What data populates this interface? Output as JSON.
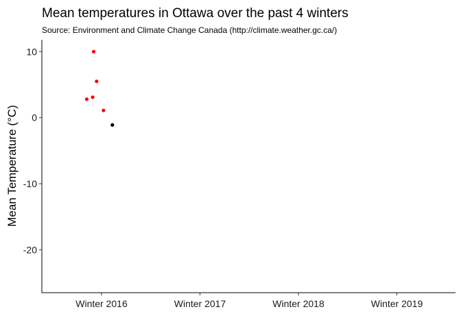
{
  "chart_data": {
    "type": "scatter",
    "title": "Mean temperatures in Ottawa over the past 4 winters",
    "subtitle": "Source: Environment and Climate Change Canada (http://climate.weather.gc.ca/)",
    "xlabel": "",
    "ylabel": "Mean Temperature (°C)",
    "categories": [
      "Winter 2016",
      "Winter 2017",
      "Winter 2018",
      "Winter 2019"
    ],
    "ylim": [
      -26.5,
      11.8
    ],
    "yticks": [
      10,
      0,
      -10,
      -20
    ],
    "grid": false,
    "legend": "none",
    "points": [
      {
        "category": "Winter 2016",
        "offset": -0.15,
        "y": 2.8,
        "color": "#ff0000"
      },
      {
        "category": "Winter 2016",
        "offset": -0.09,
        "y": 3.1,
        "color": "#ff0000"
      },
      {
        "category": "Winter 2016",
        "offset": -0.08,
        "y": 10.0,
        "color": "#ff0000"
      },
      {
        "category": "Winter 2016",
        "offset": -0.05,
        "y": 5.5,
        "color": "#ff0000"
      },
      {
        "category": "Winter 2016",
        "offset": 0.02,
        "y": 1.1,
        "color": "#ff0000"
      },
      {
        "category": "Winter 2016",
        "offset": 0.11,
        "y": -1.1,
        "color": "#000000"
      }
    ]
  }
}
